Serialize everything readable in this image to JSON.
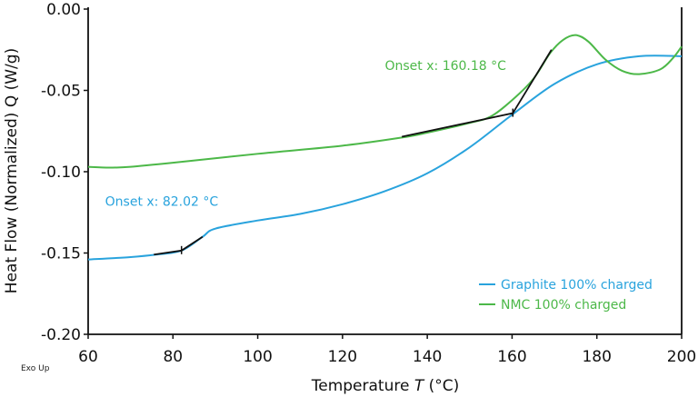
{
  "chart_data": {
    "type": "line",
    "title": "",
    "xlabel": "Temperature",
    "xlabel_var": "T",
    "xlabel_unit": "(°C)",
    "ylabel": "Heat Flow (Normalized) Q (W/g)",
    "corner_note": "Exo Up",
    "xlim": [
      60,
      200
    ],
    "ylim": [
      -0.2,
      0.0
    ],
    "xticks": [
      60,
      80,
      100,
      120,
      140,
      160,
      180,
      200
    ],
    "xtick_labels": [
      "60",
      "80",
      "100",
      "120",
      "140",
      "160",
      "180",
      "200"
    ],
    "yticks": [
      0,
      -0.05,
      -0.1,
      -0.15,
      -0.2
    ],
    "ytick_labels": [
      "0.00",
      "-0.05",
      "-0.10",
      "-0.15",
      "-0.20"
    ],
    "grid": false,
    "legend_position": "bottom-right",
    "series": [
      {
        "name": "Graphite 100% charged",
        "color": "#29a3dd",
        "x": [
          60,
          70,
          76,
          82,
          87,
          90,
          100,
          110,
          120,
          130,
          140,
          150,
          160,
          170,
          180,
          190,
          200
        ],
        "y": [
          -0.154,
          -0.1525,
          -0.151,
          -0.1485,
          -0.14,
          -0.135,
          -0.13,
          -0.126,
          -0.12,
          -0.112,
          -0.101,
          -0.085,
          -0.065,
          -0.046,
          -0.034,
          -0.029,
          -0.029
        ]
      },
      {
        "name": "NMC 100% charged",
        "color": "#4cb848",
        "x": [
          60,
          65,
          70,
          80,
          100,
          120,
          134,
          140,
          150,
          155,
          160,
          165,
          169,
          172,
          175,
          178,
          182,
          186,
          190,
          195,
          198,
          200
        ],
        "y": [
          -0.097,
          -0.0975,
          -0.097,
          -0.0945,
          -0.089,
          -0.084,
          -0.079,
          -0.076,
          -0.07,
          -0.066,
          -0.056,
          -0.043,
          -0.027,
          -0.019,
          -0.016,
          -0.02,
          -0.031,
          -0.038,
          -0.04,
          -0.037,
          -0.03,
          -0.023
        ]
      }
    ],
    "annotations": [
      {
        "text": "Onset x: 82.02 °C",
        "color": "#29a3dd",
        "onset_x": 82.02,
        "tangents": [
          [
            [
              75.5,
              -0.151
            ],
            [
              82.02,
              -0.1485
            ]
          ],
          [
            [
              82.02,
              -0.1485
            ],
            [
              87,
              -0.14
            ]
          ]
        ],
        "label_at": [
          64,
          -0.121
        ]
      },
      {
        "text": "Onset x: 160.18 °C",
        "color": "#4cb848",
        "onset_x": 160.18,
        "tangents": [
          [
            [
              134,
              -0.0785
            ],
            [
              160.18,
              -0.064
            ]
          ],
          [
            [
              160.18,
              -0.064
            ],
            [
              169.3,
              -0.025
            ]
          ]
        ],
        "label_at": [
          130,
          -0.0375
        ]
      }
    ]
  }
}
